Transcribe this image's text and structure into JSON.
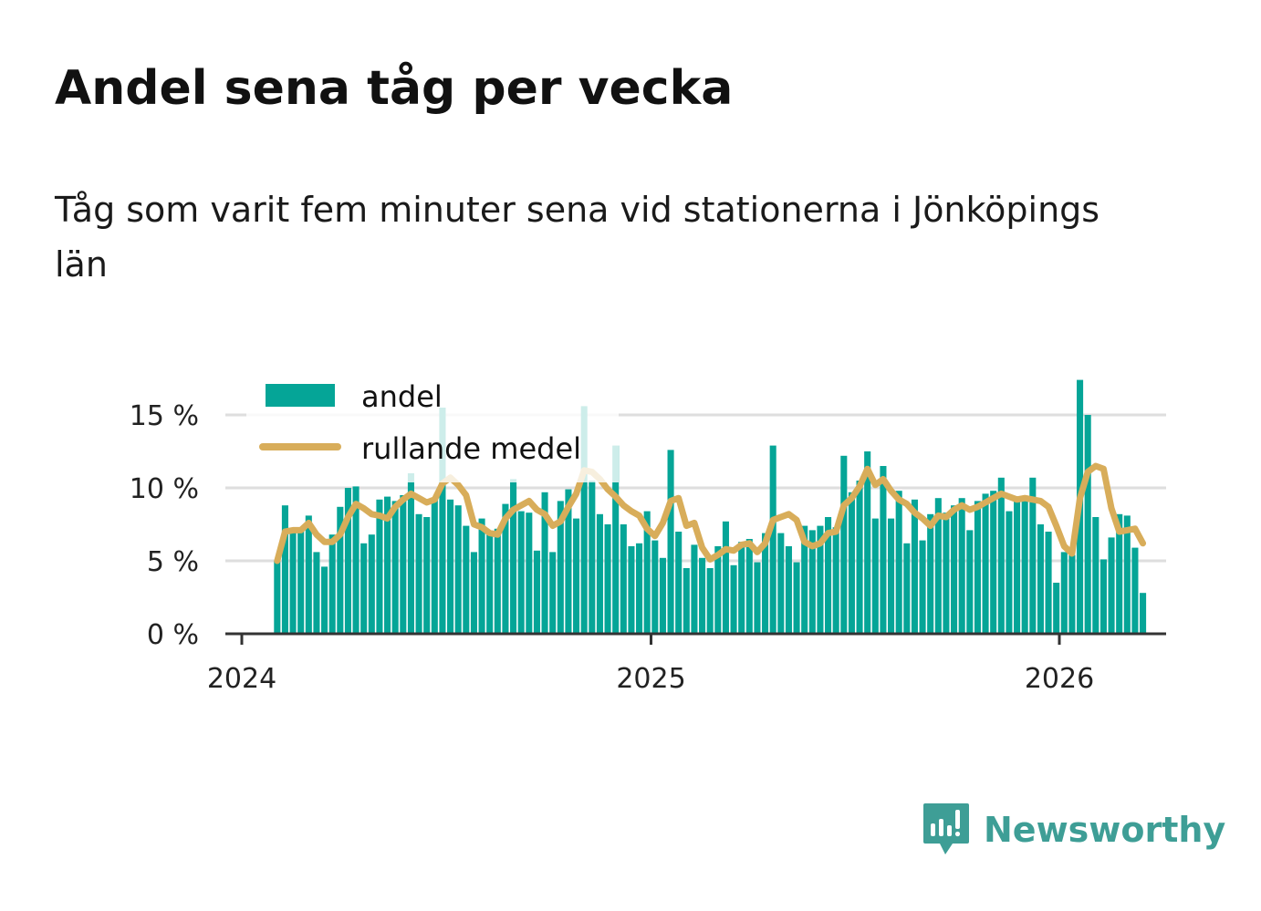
{
  "title": "Andel sena tåg per vecka",
  "subtitle": "Tåg som varit fem minuter sena vid stationerna i Jönköpings län",
  "brand": {
    "name": "Newsworthy",
    "color": "#3e9e96"
  },
  "colors": {
    "bar": "#05a597",
    "line": "#d8ad5a",
    "grid": "#dedede",
    "axis": "#333333"
  },
  "chart_data": {
    "type": "bar",
    "title": "Andel sena tåg per vecka",
    "xlabel": "",
    "ylabel": "",
    "ylim": [
      0,
      17.5
    ],
    "yticks": [
      0,
      5,
      10,
      15
    ],
    "ytick_labels": [
      "0 %",
      "5 %",
      "10 %",
      "15 %"
    ],
    "xticks": [
      2024,
      2025,
      2026
    ],
    "xtick_labels": [
      "2024",
      "2025",
      "2026"
    ],
    "x_unit": "week",
    "x_start_week": 5,
    "legend": {
      "position": "top-left",
      "entries": [
        "andel",
        "rullande medel"
      ]
    },
    "grid": true,
    "series": [
      {
        "name": "andel",
        "type": "bar",
        "values": [
          5.0,
          8.8,
          7.0,
          7.0,
          8.1,
          5.6,
          4.6,
          6.8,
          8.7,
          10.0,
          10.1,
          6.2,
          6.8,
          9.2,
          9.4,
          9.1,
          9.5,
          11.0,
          8.2,
          8.0,
          9.3,
          15.5,
          9.2,
          8.8,
          7.4,
          5.6,
          7.9,
          7.0,
          7.2,
          8.9,
          10.6,
          8.4,
          8.3,
          5.7,
          9.7,
          5.6,
          9.1,
          9.9,
          7.9,
          15.6,
          10.5,
          8.2,
          7.5,
          12.9,
          7.5,
          6.0,
          6.2,
          8.4,
          6.4,
          5.2,
          12.6,
          7.0,
          4.5,
          6.1,
          5.2,
          4.5,
          6.0,
          7.7,
          4.7,
          6.3,
          6.5,
          4.9,
          6.9,
          12.9,
          6.9,
          6.0,
          4.9,
          7.4,
          7.1,
          7.4,
          8.0,
          7.3,
          12.2,
          9.7,
          10.5,
          12.5,
          7.9,
          11.5,
          7.9,
          9.8,
          6.2,
          9.2,
          6.4,
          8.2,
          9.3,
          8.3,
          8.8,
          9.3,
          7.1,
          9.1,
          9.6,
          9.8,
          10.7,
          8.4,
          9.1,
          9.1,
          10.7,
          7.5,
          7.0,
          3.5,
          5.6,
          5.4,
          17.4,
          15.0,
          8.0,
          5.1,
          6.6,
          8.2,
          8.1,
          5.9,
          2.8
        ]
      },
      {
        "name": "rullande medel",
        "type": "line",
        "values": [
          5.0,
          7.0,
          7.1,
          7.1,
          7.6,
          6.8,
          6.3,
          6.3,
          6.8,
          8.0,
          8.9,
          8.6,
          8.2,
          8.1,
          7.9,
          8.7,
          9.2,
          9.6,
          9.3,
          9.0,
          9.2,
          10.3,
          10.7,
          10.2,
          9.5,
          7.5,
          7.3,
          6.9,
          6.8,
          7.9,
          8.5,
          8.8,
          9.1,
          8.5,
          8.2,
          7.4,
          7.7,
          8.7,
          9.6,
          11.2,
          11.1,
          10.6,
          9.9,
          9.4,
          8.8,
          8.4,
          8.1,
          7.2,
          6.7,
          7.6,
          9.1,
          9.3,
          7.4,
          7.6,
          5.9,
          5.1,
          5.4,
          5.8,
          5.7,
          6.1,
          6.2,
          5.6,
          6.2,
          7.8,
          8.0,
          8.2,
          7.8,
          6.3,
          6.0,
          6.2,
          6.9,
          7.0,
          8.8,
          9.3,
          10.1,
          11.3,
          10.2,
          10.6,
          9.8,
          9.2,
          8.9,
          8.3,
          7.9,
          7.4,
          8.1,
          8.0,
          8.5,
          8.8,
          8.5,
          8.7,
          9.0,
          9.3,
          9.6,
          9.4,
          9.2,
          9.3,
          9.2,
          9.1,
          8.7,
          7.4,
          6.0,
          5.5,
          9.3,
          11.1,
          11.5,
          11.3,
          8.6,
          7.0,
          7.1,
          7.2,
          6.2
        ]
      }
    ]
  }
}
